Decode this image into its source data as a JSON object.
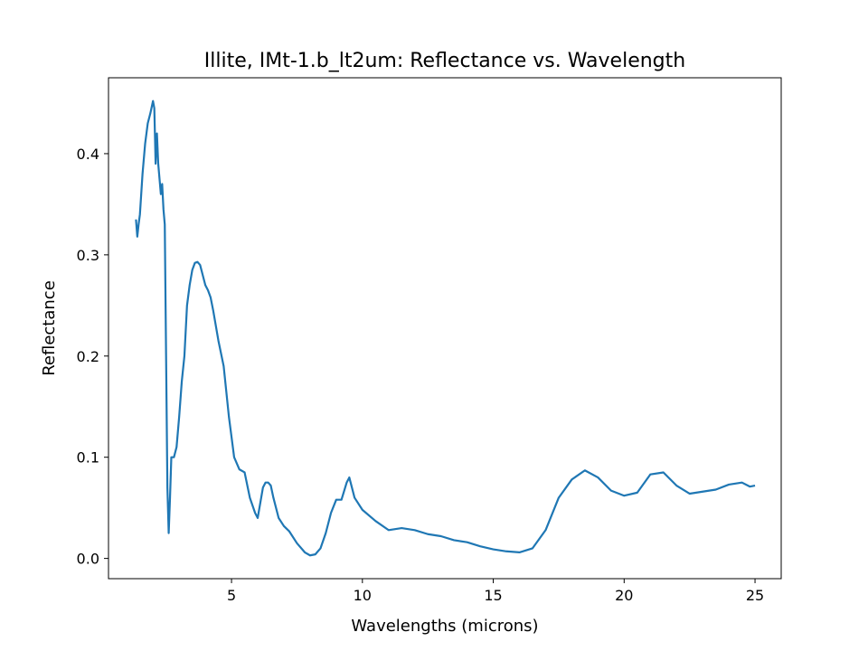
{
  "chart_data": {
    "type": "line",
    "title": "Illite, IMt-1.b_lt2um: Reflectance vs. Wavelength",
    "xlabel": "Wavelengths (microns)",
    "ylabel": "Reflectance",
    "xlim": [
      0.3,
      26.0
    ],
    "ylim": [
      -0.02,
      0.475
    ],
    "xticks": [
      5,
      10,
      15,
      20,
      25
    ],
    "yticks": [
      0.0,
      0.1,
      0.2,
      0.3,
      0.4
    ],
    "xtick_labels": [
      "5",
      "10",
      "15",
      "20",
      "25"
    ],
    "ytick_labels": [
      "0.0",
      "0.1",
      "0.2",
      "0.3",
      "0.4"
    ],
    "grid": false,
    "legend": "none",
    "series": [
      {
        "color": "#1f77b4",
        "x": [
          1.35,
          1.4,
          1.45,
          1.5,
          1.6,
          1.7,
          1.8,
          1.9,
          2.0,
          2.05,
          2.1,
          2.15,
          2.2,
          2.25,
          2.3,
          2.35,
          2.4,
          2.45,
          2.5,
          2.55,
          2.6,
          2.65,
          2.7,
          2.75,
          2.8,
          2.9,
          3.0,
          3.1,
          3.2,
          3.3,
          3.4,
          3.5,
          3.6,
          3.7,
          3.8,
          3.9,
          4.0,
          4.1,
          4.2,
          4.3,
          4.5,
          4.7,
          4.9,
          5.1,
          5.3,
          5.5,
          5.7,
          5.9,
          6.0,
          6.1,
          6.2,
          6.3,
          6.4,
          6.5,
          6.6,
          6.8,
          7.0,
          7.2,
          7.5,
          7.8,
          8.0,
          8.2,
          8.4,
          8.6,
          8.8,
          9.0,
          9.2,
          9.4,
          9.5,
          9.7,
          10.0,
          10.5,
          11.0,
          11.5,
          12.0,
          12.5,
          13.0,
          13.5,
          14.0,
          14.5,
          15.0,
          15.5,
          16.0,
          16.5,
          17.0,
          17.5,
          18.0,
          18.5,
          19.0,
          19.5,
          20.0,
          20.5,
          21.0,
          21.5,
          22.0,
          22.5,
          23.0,
          23.5,
          24.0,
          24.5,
          24.8,
          25.0
        ],
        "y": [
          0.335,
          0.318,
          0.33,
          0.34,
          0.38,
          0.41,
          0.43,
          0.44,
          0.452,
          0.445,
          0.39,
          0.42,
          0.39,
          0.375,
          0.36,
          0.37,
          0.345,
          0.33,
          0.2,
          0.07,
          0.025,
          0.06,
          0.1,
          0.1,
          0.1,
          0.11,
          0.14,
          0.175,
          0.2,
          0.25,
          0.27,
          0.285,
          0.292,
          0.293,
          0.29,
          0.28,
          0.27,
          0.265,
          0.258,
          0.245,
          0.215,
          0.19,
          0.14,
          0.1,
          0.088,
          0.085,
          0.06,
          0.045,
          0.04,
          0.055,
          0.07,
          0.075,
          0.075,
          0.072,
          0.06,
          0.04,
          0.032,
          0.027,
          0.015,
          0.006,
          0.003,
          0.004,
          0.01,
          0.025,
          0.045,
          0.058,
          0.058,
          0.075,
          0.08,
          0.06,
          0.048,
          0.037,
          0.028,
          0.03,
          0.028,
          0.024,
          0.022,
          0.018,
          0.016,
          0.012,
          0.009,
          0.007,
          0.006,
          0.01,
          0.028,
          0.06,
          0.078,
          0.087,
          0.08,
          0.067,
          0.062,
          0.065,
          0.083,
          0.085,
          0.072,
          0.064,
          0.066,
          0.068,
          0.073,
          0.075,
          0.071,
          0.072
        ]
      }
    ]
  }
}
